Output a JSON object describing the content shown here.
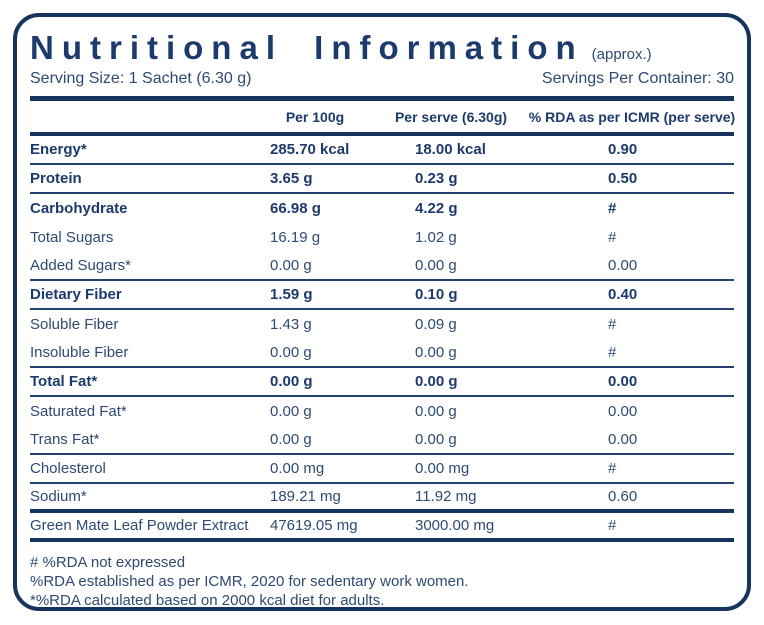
{
  "header": {
    "title": "Nutritional Information",
    "title_suffix": "(approx.)",
    "serving_size": "Serving Size: 1 Sachet (6.30 g)",
    "servings_per_container": "Servings Per Container: 30"
  },
  "table": {
    "columns": [
      "",
      "Per 100g",
      "Per serve (6.30g)",
      "% RDA as per ICMR (per serve)"
    ],
    "rows": [
      {
        "name": "Energy*",
        "per_100g": "285.70 kcal",
        "per_serve": "18.00 kcal",
        "rda_percent": "0.90",
        "bold": true,
        "line_below": "thin"
      },
      {
        "name": "Protein",
        "per_100g": "3.65 g",
        "per_serve": "0.23 g",
        "rda_percent": "0.50",
        "bold": true,
        "line_below": "thin"
      },
      {
        "name": "Carbohydrate",
        "per_100g": "66.98 g",
        "per_serve": "4.22 g",
        "rda_percent": "#",
        "bold": true,
        "line_below": "none"
      },
      {
        "name": "Total Sugars",
        "per_100g": "16.19 g",
        "per_serve": "1.02 g",
        "rda_percent": "#",
        "bold": false,
        "line_below": "none"
      },
      {
        "name": "Added Sugars*",
        "per_100g": "0.00 g",
        "per_serve": "0.00 g",
        "rda_percent": "0.00",
        "bold": false,
        "line_below": "thin"
      },
      {
        "name": "Dietary Fiber",
        "per_100g": "1.59 g",
        "per_serve": "0.10 g",
        "rda_percent": "0.40",
        "bold": true,
        "line_below": "thin"
      },
      {
        "name": "Soluble Fiber",
        "per_100g": "1.43 g",
        "per_serve": "0.09 g",
        "rda_percent": "#",
        "bold": false,
        "line_below": "none"
      },
      {
        "name": "Insoluble Fiber",
        "per_100g": "0.00 g",
        "per_serve": "0.00 g",
        "rda_percent": "#",
        "bold": false,
        "line_below": "thin"
      },
      {
        "name": "Total Fat*",
        "per_100g": "0.00 g",
        "per_serve": "0.00 g",
        "rda_percent": "0.00",
        "bold": true,
        "line_below": "thin"
      },
      {
        "name": "Saturated Fat*",
        "per_100g": "0.00 g",
        "per_serve": "0.00 g",
        "rda_percent": "0.00",
        "bold": false,
        "line_below": "none"
      },
      {
        "name": "Trans Fat*",
        "per_100g": "0.00 g",
        "per_serve": "0.00 g",
        "rda_percent": "0.00",
        "bold": false,
        "line_below": "thin"
      },
      {
        "name": "Cholesterol",
        "per_100g": "0.00 mg",
        "per_serve": "0.00 mg",
        "rda_percent": "#",
        "bold": false,
        "line_below": "thin"
      },
      {
        "name": "Sodium*",
        "per_100g": "189.21 mg",
        "per_serve": "11.92 mg",
        "rda_percent": "0.60",
        "bold": false,
        "line_below": "thick"
      },
      {
        "name": "Green Mate Leaf Powder Extract",
        "per_100g": "47619.05 mg",
        "per_serve": "3000.00 mg",
        "rda_percent": "#",
        "bold": false,
        "line_below": "thick"
      }
    ]
  },
  "footnotes": [
    "# %RDA not expressed",
    "%RDA established as per ICMR, 2020 for sedentary work women.",
    "*%RDA calculated based on 2000 kcal diet for adults."
  ],
  "colors": {
    "navy": "#17345e",
    "text_bold": "#1d3a6c",
    "text_regular": "#2e4a72",
    "background": "#ffffff"
  }
}
